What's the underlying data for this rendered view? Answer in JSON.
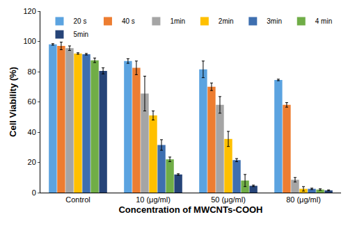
{
  "chart_data": {
    "type": "bar",
    "x_label": "Concentration of MWCNTs-COOH",
    "y_label": "Cell Viability (%)",
    "categories": [
      "Control",
      "10 (μg/ml)",
      "50 (μg/ml)",
      "80 (μg/ml)"
    ],
    "series": [
      {
        "name": "20 s",
        "color": "#5ba3e0",
        "values": [
          98,
          87,
          81.5,
          74.5
        ],
        "errors": [
          0.5,
          1.5,
          5.5,
          0.5
        ]
      },
      {
        "name": "40 s",
        "color": "#ed7d31",
        "values": [
          97,
          82.5,
          70,
          58
        ],
        "errors": [
          2.5,
          4.5,
          2.5,
          1.5
        ]
      },
      {
        "name": "1min",
        "color": "#a5a5a5",
        "values": [
          95.5,
          65.5,
          58,
          8.5
        ],
        "errors": [
          1.5,
          11.5,
          5.5,
          1.5
        ]
      },
      {
        "name": "2min",
        "color": "#ffc000",
        "values": [
          92,
          51,
          35.5,
          2.5
        ],
        "errors": [
          0.5,
          3,
          5,
          1.5
        ]
      },
      {
        "name": "3min",
        "color": "#3e6fb0",
        "values": [
          91.5,
          31.5,
          21.5,
          2.5
        ],
        "errors": [
          0.5,
          3.5,
          1,
          0.5
        ]
      },
      {
        "name": "4 min",
        "color": "#70ad47",
        "values": [
          87.5,
          22,
          8,
          2
        ],
        "errors": [
          1.5,
          1.5,
          4,
          0.5
        ]
      },
      {
        "name": "5min",
        "color": "#264478",
        "values": [
          80.5,
          12,
          4.5,
          1.5
        ],
        "errors": [
          2,
          0.5,
          0.5,
          0.3
        ]
      }
    ],
    "ylim": [
      0,
      120
    ],
    "yticks": [
      0,
      20,
      40,
      60,
      80,
      100,
      120
    ],
    "grid": false,
    "legend": "top"
  }
}
